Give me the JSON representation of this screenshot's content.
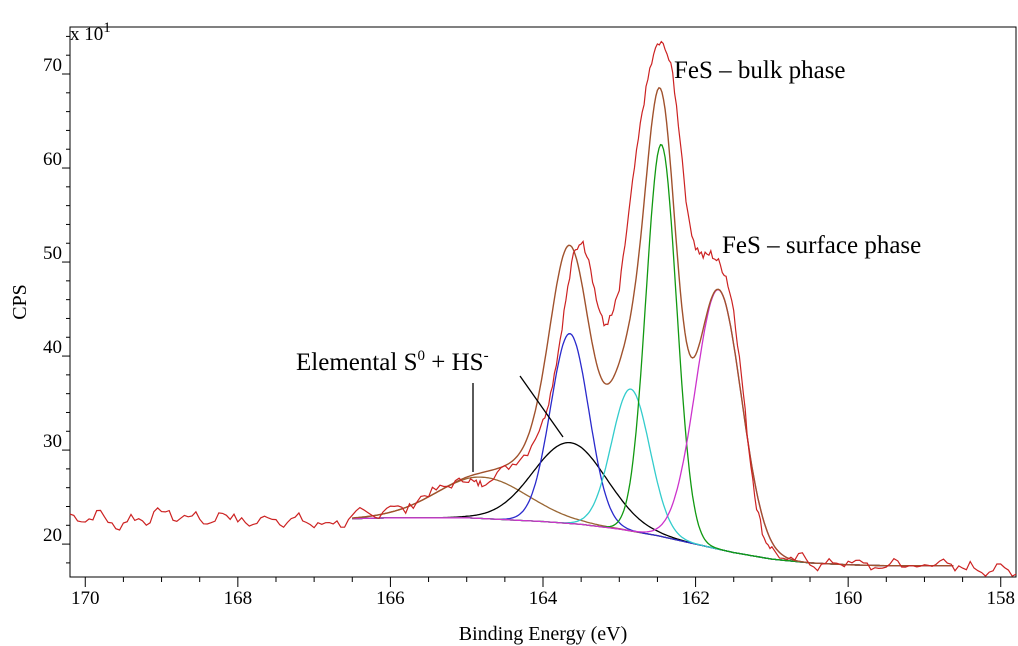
{
  "chart_data": {
    "type": "line",
    "xlabel": "Binding Energy (eV)",
    "ylabel": "CPS",
    "y_multiplier": {
      "base": "x 10",
      "exponent": "1"
    },
    "xlim": [
      170.2,
      157.8
    ],
    "ylim": [
      16.5,
      75
    ],
    "x_axis_reversed": true,
    "grid": false,
    "x_ticks": [
      170,
      168,
      166,
      164,
      162,
      160,
      158
    ],
    "y_ticks": [
      20,
      30,
      40,
      50,
      60,
      70
    ],
    "baseline": {
      "x": [
        166.5,
        166,
        165.5,
        165,
        164.5,
        164,
        163.5,
        163,
        162.5,
        162,
        161.5,
        161,
        160.5,
        160,
        159.5,
        159,
        158.5
      ],
      "y": [
        22.7,
        22.8,
        22.8,
        22.8,
        22.6,
        22.4,
        22.1,
        21.6,
        20.9,
        20.0,
        19.1,
        18.4,
        18.0,
        17.8,
        17.7,
        17.7,
        17.7
      ]
    },
    "components": [
      {
        "color": "#996633",
        "center": 164.8,
        "height": 4.4,
        "sigma": 0.6
      },
      {
        "color": "#000000",
        "center": 163.65,
        "height": 8.6,
        "sigma": 0.48
      },
      {
        "color": "#2a2acc",
        "center": 163.65,
        "height": 20.2,
        "sigma": 0.25
      },
      {
        "color": "#33cccc",
        "center": 162.85,
        "height": 15.1,
        "sigma": 0.25
      },
      {
        "color": "#119911",
        "center": 162.45,
        "height": 41.7,
        "sigma": 0.2
      },
      {
        "color": "#cc33cc",
        "center": 161.7,
        "height": 27.6,
        "sigma": 0.3
      }
    ],
    "raw_data": {
      "color": "#cc2222",
      "x": [
        170.2,
        170.0,
        169.8,
        169.6,
        169.4,
        169.2,
        169.0,
        168.8,
        168.6,
        168.4,
        168.2,
        168.0,
        167.8,
        167.6,
        167.4,
        167.2,
        167.0,
        166.8,
        166.6,
        166.4,
        166.2,
        166.0,
        165.8,
        165.6,
        165.4,
        165.2,
        165.0,
        164.9,
        164.8,
        164.6,
        164.4,
        164.2,
        164.0,
        163.9,
        163.8,
        163.7,
        163.6,
        163.5,
        163.4,
        163.3,
        163.2,
        163.1,
        163.0,
        162.9,
        162.8,
        162.7,
        162.6,
        162.5,
        162.4,
        162.3,
        162.2,
        162.1,
        162.0,
        161.9,
        161.8,
        161.7,
        161.6,
        161.5,
        161.4,
        161.3,
        161.2,
        161.1,
        161.0,
        160.8,
        160.6,
        160.4,
        160.2,
        160.0,
        159.8,
        159.6,
        159.4,
        159.2,
        159.0,
        158.8,
        158.6,
        158.4,
        158.2,
        158.0,
        157.8
      ],
      "y": [
        23.2,
        22.4,
        23.5,
        21.5,
        23.0,
        22.3,
        23.8,
        22.5,
        23.3,
        22.1,
        23.4,
        22.6,
        22.0,
        23.1,
        22.2,
        22.9,
        21.8,
        22.5,
        22.0,
        23.5,
        22.8,
        24.3,
        23.5,
        25.0,
        25.8,
        26.3,
        27.0,
        26.5,
        26.4,
        27.6,
        28.5,
        29.8,
        33.0,
        36.0,
        40.5,
        46.0,
        50.8,
        52.3,
        50.5,
        46.0,
        43.2,
        44.2,
        47.0,
        53.5,
        60.0,
        66.0,
        70.5,
        73.2,
        73.0,
        70.0,
        63.0,
        54.8,
        51.6,
        50.6,
        50.9,
        50.0,
        48.5,
        45.0,
        38.0,
        30.0,
        24.0,
        20.6,
        19.5,
        18.0,
        18.8,
        17.5,
        18.2,
        17.8,
        18.2,
        17.0,
        18.4,
        17.4,
        17.7,
        18.3,
        17.2,
        17.8,
        17.0,
        17.6,
        16.8
      ]
    },
    "annotations": [
      {
        "text": "FeS – bulk phase"
      },
      {
        "text": "FeS – surface phase"
      },
      {
        "text": "Elemental S",
        "sup1": "0",
        "mid": " + HS",
        "sup2": "-"
      }
    ]
  }
}
